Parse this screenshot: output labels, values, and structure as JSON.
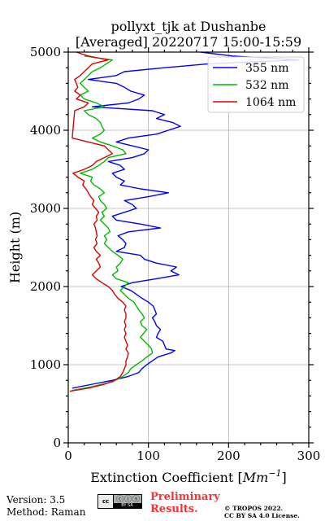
{
  "chart_data": {
    "type": "line",
    "title_line1": "pollyxt_tjk at Dushanbe",
    "title_line2": "[Averaged] 20220717 15:00-15:59",
    "xlabel_main": "Extinction Coefficient [",
    "xlabel_unit": "Mm",
    "xlabel_exp": "−1",
    "xlabel_close": "]",
    "ylabel": "Height (m)",
    "xlim": [
      0,
      300
    ],
    "ylim": [
      0,
      5000
    ],
    "x_ticks": [
      0,
      100,
      200,
      300
    ],
    "y_ticks": [
      0,
      1000,
      2000,
      3000,
      4000,
      5000
    ],
    "grid": true,
    "legend_position": "top-right",
    "series": [
      {
        "name": "355 nm",
        "color": "#0000ff",
        "points": [
          [
            5,
            700
          ],
          [
            30,
            750
          ],
          [
            55,
            800
          ],
          [
            75,
            850
          ],
          [
            88,
            900
          ],
          [
            92,
            950
          ],
          [
            98,
            1000
          ],
          [
            105,
            1050
          ],
          [
            112,
            1100
          ],
          [
            128,
            1150
          ],
          [
            133,
            1180
          ],
          [
            122,
            1200
          ],
          [
            120,
            1250
          ],
          [
            118,
            1300
          ],
          [
            110,
            1350
          ],
          [
            112,
            1400
          ],
          [
            115,
            1450
          ],
          [
            110,
            1500
          ],
          [
            108,
            1550
          ],
          [
            105,
            1600
          ],
          [
            110,
            1650
          ],
          [
            108,
            1700
          ],
          [
            106,
            1750
          ],
          [
            100,
            1800
          ],
          [
            92,
            1850
          ],
          [
            85,
            1900
          ],
          [
            78,
            1950
          ],
          [
            66,
            2000
          ],
          [
            80,
            2050
          ],
          [
            110,
            2100
          ],
          [
            138,
            2150
          ],
          [
            128,
            2200
          ],
          [
            135,
            2250
          ],
          [
            110,
            2300
          ],
          [
            95,
            2350
          ],
          [
            90,
            2400
          ],
          [
            60,
            2450
          ],
          [
            70,
            2500
          ],
          [
            72,
            2550
          ],
          [
            68,
            2600
          ],
          [
            62,
            2650
          ],
          [
            75,
            2700
          ],
          [
            115,
            2750
          ],
          [
            90,
            2800
          ],
          [
            60,
            2850
          ],
          [
            55,
            2900
          ],
          [
            70,
            2950
          ],
          [
            85,
            3000
          ],
          [
            80,
            3050
          ],
          [
            70,
            3100
          ],
          [
            100,
            3150
          ],
          [
            125,
            3200
          ],
          [
            90,
            3250
          ],
          [
            65,
            3300
          ],
          [
            70,
            3350
          ],
          [
            60,
            3400
          ],
          [
            55,
            3450
          ],
          [
            70,
            3500
          ],
          [
            65,
            3550
          ],
          [
            50,
            3600
          ],
          [
            80,
            3650
          ],
          [
            95,
            3700
          ],
          [
            100,
            3750
          ],
          [
            80,
            3800
          ],
          [
            60,
            3850
          ],
          [
            75,
            3900
          ],
          [
            110,
            3950
          ],
          [
            125,
            4000
          ],
          [
            140,
            4050
          ],
          [
            130,
            4100
          ],
          [
            110,
            4150
          ],
          [
            120,
            4200
          ],
          [
            105,
            4250
          ],
          [
            30,
            4300
          ],
          [
            75,
            4350
          ],
          [
            88,
            4400
          ],
          [
            95,
            4450
          ],
          [
            78,
            4500
          ],
          [
            70,
            4550
          ],
          [
            60,
            4600
          ],
          [
            25,
            4650
          ],
          [
            60,
            4700
          ],
          [
            70,
            4750
          ],
          [
            120,
            4800
          ],
          [
            175,
            4850
          ],
          [
            288,
            4900
          ],
          [
            205,
            4950
          ],
          [
            165,
            5000
          ]
        ]
      },
      {
        "name": "532 nm",
        "color": "#00bb00",
        "points": [
          [
            5,
            670
          ],
          [
            30,
            720
          ],
          [
            55,
            780
          ],
          [
            68,
            850
          ],
          [
            75,
            900
          ],
          [
            78,
            950
          ],
          [
            85,
            1000
          ],
          [
            92,
            1050
          ],
          [
            98,
            1100
          ],
          [
            105,
            1150
          ],
          [
            104,
            1200
          ],
          [
            100,
            1250
          ],
          [
            95,
            1300
          ],
          [
            90,
            1350
          ],
          [
            94,
            1400
          ],
          [
            98,
            1450
          ],
          [
            92,
            1500
          ],
          [
            90,
            1550
          ],
          [
            95,
            1600
          ],
          [
            92,
            1650
          ],
          [
            88,
            1700
          ],
          [
            85,
            1750
          ],
          [
            82,
            1800
          ],
          [
            75,
            1850
          ],
          [
            70,
            1900
          ],
          [
            65,
            1950
          ],
          [
            70,
            2000
          ],
          [
            75,
            2050
          ],
          [
            60,
            2100
          ],
          [
            55,
            2150
          ],
          [
            62,
            2200
          ],
          [
            60,
            2250
          ],
          [
            65,
            2300
          ],
          [
            68,
            2350
          ],
          [
            62,
            2400
          ],
          [
            55,
            2450
          ],
          [
            50,
            2500
          ],
          [
            45,
            2550
          ],
          [
            48,
            2600
          ],
          [
            45,
            2650
          ],
          [
            52,
            2700
          ],
          [
            50,
            2750
          ],
          [
            45,
            2800
          ],
          [
            40,
            2850
          ],
          [
            45,
            2900
          ],
          [
            42,
            2950
          ],
          [
            48,
            3000
          ],
          [
            45,
            3050
          ],
          [
            40,
            3100
          ],
          [
            38,
            3150
          ],
          [
            45,
            3200
          ],
          [
            40,
            3250
          ],
          [
            32,
            3300
          ],
          [
            28,
            3350
          ],
          [
            30,
            3400
          ],
          [
            15,
            3450
          ],
          [
            30,
            3500
          ],
          [
            38,
            3550
          ],
          [
            45,
            3600
          ],
          [
            50,
            3650
          ],
          [
            72,
            3700
          ],
          [
            68,
            3750
          ],
          [
            55,
            3800
          ],
          [
            40,
            3850
          ],
          [
            30,
            3900
          ],
          [
            40,
            3950
          ],
          [
            45,
            4000
          ],
          [
            42,
            4050
          ],
          [
            40,
            4100
          ],
          [
            35,
            4150
          ],
          [
            25,
            4200
          ],
          [
            20,
            4250
          ],
          [
            45,
            4300
          ],
          [
            35,
            4350
          ],
          [
            20,
            4400
          ],
          [
            15,
            4450
          ],
          [
            25,
            4500
          ],
          [
            20,
            4550
          ],
          [
            15,
            4600
          ],
          [
            20,
            4650
          ],
          [
            25,
            4700
          ],
          [
            30,
            4750
          ],
          [
            40,
            4800
          ],
          [
            55,
            4900
          ],
          [
            20,
            4950
          ]
        ]
      },
      {
        "name": "1064 nm",
        "color": "#dd0000",
        "points": [
          [
            2,
            660
          ],
          [
            25,
            700
          ],
          [
            45,
            750
          ],
          [
            58,
            800
          ],
          [
            65,
            850
          ],
          [
            68,
            900
          ],
          [
            70,
            950
          ],
          [
            72,
            1000
          ],
          [
            72,
            1050
          ],
          [
            74,
            1100
          ],
          [
            75,
            1150
          ],
          [
            72,
            1200
          ],
          [
            74,
            1250
          ],
          [
            72,
            1300
          ],
          [
            70,
            1350
          ],
          [
            72,
            1400
          ],
          [
            70,
            1450
          ],
          [
            72,
            1500
          ],
          [
            70,
            1550
          ],
          [
            72,
            1600
          ],
          [
            72,
            1650
          ],
          [
            70,
            1700
          ],
          [
            72,
            1750
          ],
          [
            68,
            1800
          ],
          [
            62,
            1850
          ],
          [
            58,
            1900
          ],
          [
            55,
            1950
          ],
          [
            50,
            2000
          ],
          [
            42,
            2050
          ],
          [
            35,
            2100
          ],
          [
            30,
            2150
          ],
          [
            35,
            2200
          ],
          [
            40,
            2250
          ],
          [
            38,
            2300
          ],
          [
            35,
            2350
          ],
          [
            40,
            2400
          ],
          [
            35,
            2450
          ],
          [
            32,
            2500
          ],
          [
            36,
            2550
          ],
          [
            34,
            2600
          ],
          [
            36,
            2650
          ],
          [
            35,
            2700
          ],
          [
            34,
            2750
          ],
          [
            32,
            2800
          ],
          [
            36,
            2850
          ],
          [
            35,
            2900
          ],
          [
            38,
            2950
          ],
          [
            34,
            3000
          ],
          [
            30,
            3050
          ],
          [
            32,
            3100
          ],
          [
            28,
            3150
          ],
          [
            25,
            3200
          ],
          [
            22,
            3250
          ],
          [
            18,
            3300
          ],
          [
            20,
            3350
          ],
          [
            12,
            3400
          ],
          [
            6,
            3450
          ],
          [
            20,
            3500
          ],
          [
            30,
            3550
          ],
          [
            35,
            3600
          ],
          [
            45,
            3650
          ],
          [
            55,
            3700
          ],
          [
            50,
            3750
          ],
          [
            45,
            3800
          ],
          [
            25,
            3850
          ],
          [
            5,
            3900
          ],
          [
            8,
            4250
          ],
          [
            20,
            4300
          ],
          [
            25,
            4350
          ],
          [
            10,
            4400
          ],
          [
            15,
            4450
          ],
          [
            8,
            4500
          ],
          [
            12,
            4550
          ],
          [
            10,
            4600
          ],
          [
            8,
            4650
          ],
          [
            15,
            4700
          ],
          [
            20,
            4750
          ],
          [
            25,
            4800
          ],
          [
            30,
            4850
          ],
          [
            50,
            4900
          ],
          [
            25,
            4950
          ],
          [
            10,
            5000
          ]
        ]
      }
    ]
  },
  "footer": {
    "version": "Version: 3.5",
    "method": "Method: Raman",
    "license_badge": "cc",
    "license_symbols": "ⓒⓘⓢ",
    "license_tag": "BY  SA",
    "preliminary_line1": "Preliminary",
    "preliminary_line2": "Results.",
    "copyright_line1": "© TROPOS 2022.",
    "copyright_line2": "CC BY SA 4.0 License."
  }
}
